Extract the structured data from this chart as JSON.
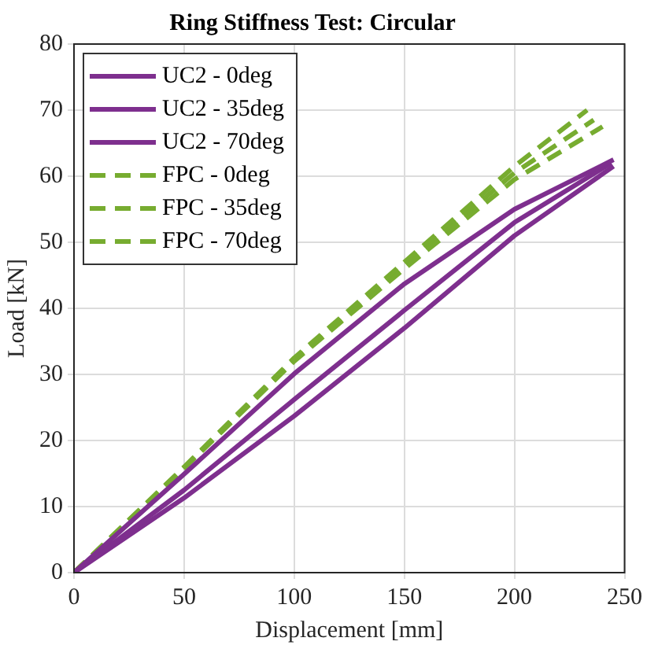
{
  "chart_data": {
    "type": "line",
    "title": "Ring Stiffness Test: Circular",
    "xlabel": "Displacement [mm]",
    "ylabel": "Load [kN]",
    "xlim": [
      0,
      250
    ],
    "xticks": [
      0,
      50,
      100,
      150,
      200,
      250
    ],
    "ylim": [
      0,
      80
    ],
    "yticks": [
      0,
      10,
      20,
      30,
      40,
      50,
      60,
      70,
      80
    ],
    "grid": true,
    "legend": "top left",
    "marker": "none",
    "series": [
      {
        "name": "UC2 - 0deg",
        "color": "#7e2f8e",
        "line_style": "solid",
        "x": [
          0,
          50,
          100,
          150,
          200,
          245
        ],
        "values": [
          0,
          14.9,
          30.1,
          43.7,
          55,
          62.5
        ]
      },
      {
        "name": "UC2 - 35deg",
        "color": "#7e2f8e",
        "line_style": "solid",
        "x": [
          0,
          50,
          100,
          150,
          200,
          244
        ],
        "values": [
          0,
          12.5,
          26.2,
          39.7,
          53,
          62
        ]
      },
      {
        "name": "UC2 - 70deg",
        "color": "#7e2f8e",
        "line_style": "solid",
        "x": [
          0,
          50,
          100,
          150,
          200,
          245
        ],
        "values": [
          0,
          11.3,
          23.7,
          37,
          51,
          61.5
        ]
      },
      {
        "name": "FPC - 0deg",
        "color": "#77ac30",
        "line_style": "dashed",
        "x": [
          0,
          50,
          100,
          150,
          200,
          233
        ],
        "values": [
          0,
          16,
          32.5,
          47,
          61.5,
          70
        ]
      },
      {
        "name": "FPC - 35deg",
        "color": "#77ac30",
        "line_style": "dashed",
        "x": [
          0,
          50,
          100,
          150,
          200,
          240
        ],
        "values": [
          0,
          15.8,
          32,
          46,
          59.5,
          67.5
        ]
      },
      {
        "name": "FPC - 70deg",
        "color": "#77ac30",
        "line_style": "dashed",
        "x": [
          0,
          50,
          100,
          150,
          200,
          236
        ],
        "values": [
          0,
          15.9,
          32.2,
          46.5,
          60.5,
          68.5
        ]
      }
    ]
  }
}
